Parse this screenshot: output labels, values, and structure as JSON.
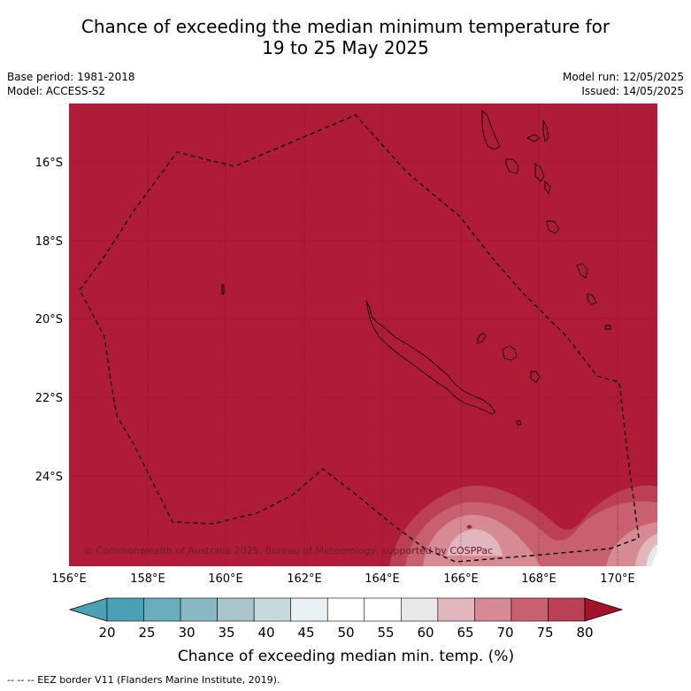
{
  "title_line1": "Chance of exceeding the median minimum temperature for",
  "title_line2": "19 to 25 May 2025",
  "meta": {
    "base_period": "Base period: 1981-2018",
    "model": "Model: ACCESS-S2",
    "model_run": "Model run: 12/05/2025",
    "issued": "Issued: 14/05/2025"
  },
  "map": {
    "copyright": "© Commonwealth of Australia 2025, Bureau of Meteorology, supported by COSPPac",
    "lat_labels": [
      "16°S",
      "18°S",
      "20°S",
      "22°S",
      "24°S"
    ],
    "lon_labels": [
      "156°E",
      "158°E",
      "160°E",
      "162°E",
      "164°E",
      "166°E",
      "168°E",
      "170°E"
    ],
    "background_color": "#b01c38"
  },
  "colorbar": {
    "ticks": [
      "20",
      "25",
      "30",
      "35",
      "40",
      "45",
      "50",
      "55",
      "60",
      "65",
      "70",
      "75",
      "80"
    ],
    "colors": [
      "#4aa1b3",
      "#68aebd",
      "#8ab8c3",
      "#a8c6cb",
      "#c7d9dc",
      "#ebf0f2",
      "#ffffff",
      "#ffffff",
      "#e9e9e9",
      "#e2b6bd",
      "#d58a94",
      "#c8606f",
      "#bc4054"
    ],
    "low_extend_color": "#4aa1b3",
    "high_extend_color": "#a5122e",
    "label": "Chance of exceeding median min. temp. (%)"
  },
  "footer": "--  --  -- EEZ border V11 (Flanders Marine Institute, 2019)."
}
